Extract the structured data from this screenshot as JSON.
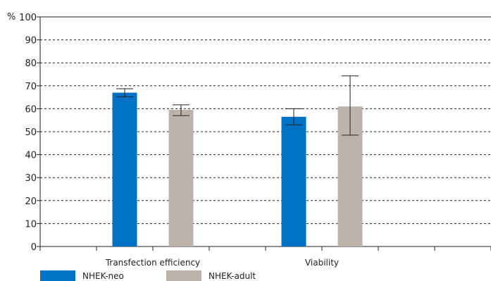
{
  "chart_data": {
    "type": "bar",
    "y_unit": "%",
    "ylim": [
      0,
      100
    ],
    "yticks": [
      0,
      10,
      20,
      30,
      40,
      50,
      60,
      70,
      80,
      90,
      100
    ],
    "categories": [
      "Transfection efficiency",
      "Viability"
    ],
    "series": [
      {
        "name": "NHEK-neo",
        "color": "#0072c6",
        "values": [
          67,
          56.5
        ],
        "error": [
          [
            65.2,
            68.7
          ],
          [
            53,
            60
          ]
        ]
      },
      {
        "name": "NHEK-adult",
        "color": "#bcb4aa",
        "values": [
          59.5,
          61
        ],
        "error": [
          [
            57,
            61.7
          ],
          [
            48.5,
            74.3
          ]
        ]
      }
    ],
    "grid": true,
    "legend_position": "bottom-left"
  }
}
